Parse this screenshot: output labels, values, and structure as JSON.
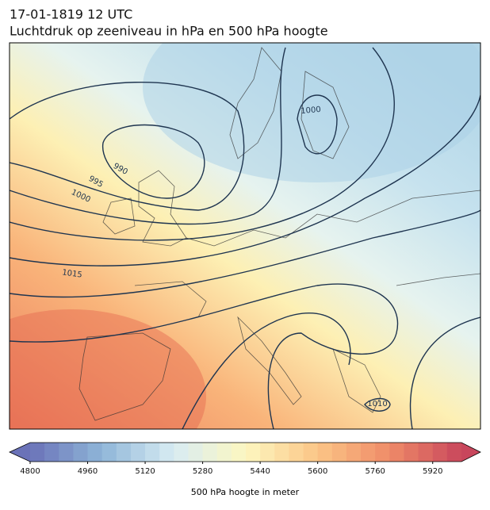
{
  "title": "17-01-1819 12 UTC",
  "subtitle": "Luchtdruk op zeeniveau in hPa en 500 hPa hoogte",
  "isobar_labels": [
    990,
    995,
    1000,
    1000,
    1015,
    1010
  ],
  "colorbar": {
    "label": "500 hPa hoogte in meter",
    "vlim": [
      4800,
      6000
    ],
    "step": 40,
    "ticks": [
      4800,
      4960,
      5120,
      5280,
      5440,
      5600,
      5760,
      5920
    ],
    "colors": [
      "#6a72b8",
      "#8fb6d8",
      "#d8ecf3",
      "#fdf7c0",
      "#fbc586",
      "#ef8b68",
      "#c8465c"
    ]
  }
}
